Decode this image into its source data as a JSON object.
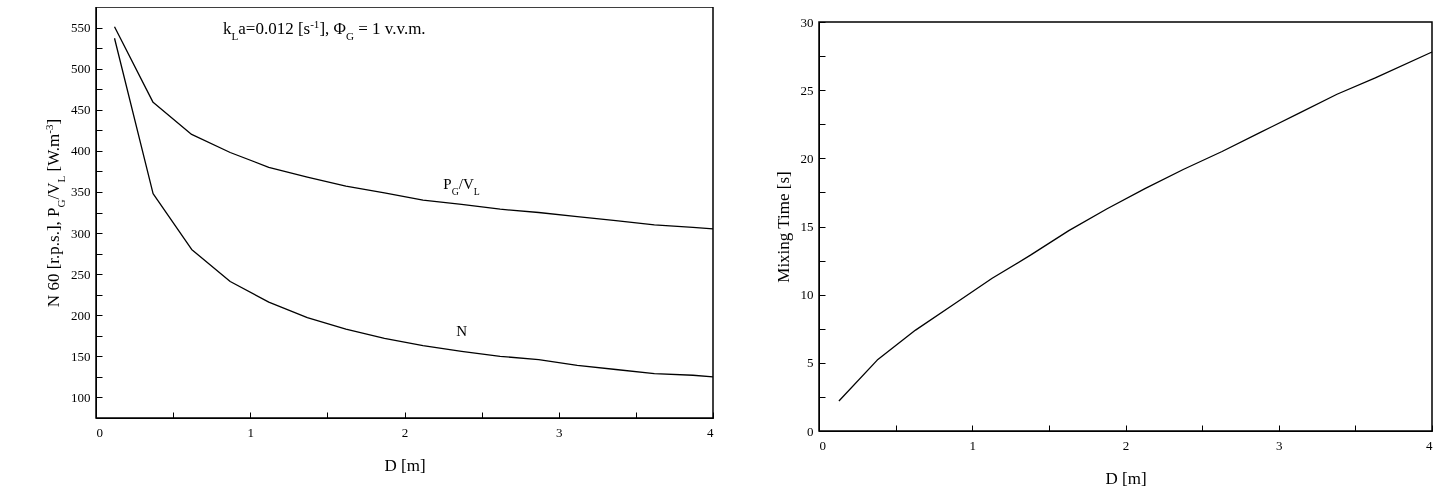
{
  "chart_data": [
    {
      "type": "line",
      "xlabel": "D [m]",
      "ylabel": "N 60 [r.p.s.], P$_{G}$/V$_{L}$ [W.m$^{-3}$]",
      "annotations": [
        "k$_{L}$a=0.012 [s$^{-1}$], Φ$_{G}$ = 1 v.v.m."
      ],
      "x": [
        0.12,
        0.37,
        0.62,
        0.87,
        1.12,
        1.37,
        1.62,
        1.87,
        2.12,
        2.37,
        2.62,
        2.87,
        3.12,
        3.37,
        3.62,
        3.87,
        4.0
      ],
      "series": [
        {
          "name": "P$_{G}$/V$_{L}$",
          "color": "#000000",
          "values": [
            551,
            459,
            420,
            398,
            380,
            368,
            357,
            349,
            340,
            335,
            329,
            325,
            320,
            315,
            310,
            307,
            305
          ]
        },
        {
          "name": "N",
          "color": "#000000",
          "values": [
            537,
            348,
            280,
            241,
            216,
            197,
            183,
            172,
            163,
            156,
            150,
            146,
            139,
            134,
            129,
            127,
            125
          ]
        }
      ],
      "xlim": [
        0,
        4
      ],
      "ylim": [
        75,
        575
      ],
      "xticks": [
        0,
        {
          "value": 0.5,
          "label": null
        },
        1,
        {
          "value": 1.5,
          "label": null
        },
        2,
        {
          "value": 2.5,
          "label": null
        },
        3,
        {
          "value": 3.5,
          "label": null
        },
        4
      ],
      "yticks": [
        100,
        {
          "value": 125,
          "label": null
        },
        150,
        {
          "value": 175,
          "label": null
        },
        200,
        {
          "value": 225,
          "label": null
        },
        250,
        {
          "value": 275,
          "label": null
        },
        300,
        {
          "value": 325,
          "label": null
        },
        350,
        {
          "value": 375,
          "label": null
        },
        400,
        {
          "value": 425,
          "label": null
        },
        450,
        {
          "value": 475,
          "label": null
        },
        500,
        {
          "value": 525,
          "label": null
        },
        550
      ],
      "grid": false,
      "marker": "none",
      "line_style": "solid"
    },
    {
      "type": "line",
      "xlabel": "D [m]",
      "ylabel": "Mixing Time [s]",
      "x": [
        0.13,
        0.38,
        0.63,
        0.88,
        1.13,
        1.38,
        1.63,
        1.88,
        2.13,
        2.38,
        2.63,
        2.88,
        3.13,
        3.38,
        3.63,
        4.0
      ],
      "series": [
        {
          "color": "#000000",
          "values": [
            2.2,
            5.2,
            7.4,
            9.3,
            11.2,
            12.9,
            14.7,
            16.3,
            17.8,
            19.2,
            20.5,
            21.9,
            23.3,
            24.7,
            25.9,
            27.8
          ]
        }
      ],
      "xlim": [
        0,
        4
      ],
      "ylim": [
        0,
        30
      ],
      "xticks": [
        0,
        {
          "value": 0.5,
          "label": null
        },
        1,
        {
          "value": 1.5,
          "label": null
        },
        2,
        {
          "value": 2.5,
          "label": null
        },
        3,
        {
          "value": 3.5,
          "label": null
        },
        4
      ],
      "yticks": [
        0,
        {
          "value": 2.5,
          "label": null
        },
        5,
        {
          "value": 7.5,
          "label": null
        },
        10,
        {
          "value": 12.5,
          "label": null
        },
        15,
        {
          "value": 17.5,
          "label": null
        },
        20,
        {
          "value": 22.5,
          "label": null
        },
        25,
        {
          "value": 27.5,
          "label": null
        },
        30
      ],
      "grid": false,
      "marker": "none",
      "line_style": "solid"
    }
  ]
}
